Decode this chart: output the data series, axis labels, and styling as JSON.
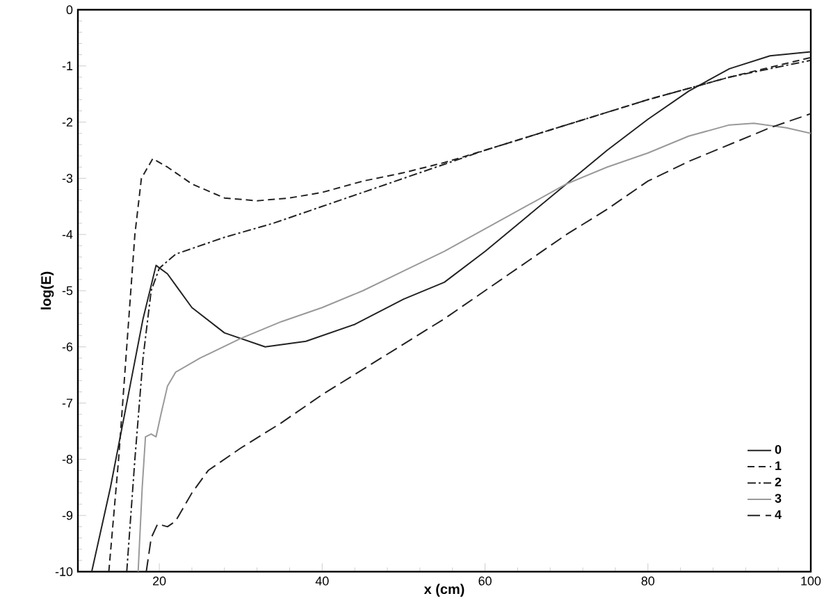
{
  "chart_data": {
    "type": "line",
    "xlabel": "x (cm)",
    "ylabel": "log(E)",
    "xlim": [
      10,
      100
    ],
    "ylim": [
      -10,
      0
    ],
    "xticks": [
      20,
      40,
      60,
      80,
      100
    ],
    "yticks": [
      -10,
      -9,
      -8,
      -7,
      -6,
      -5,
      -4,
      -3,
      -2,
      -1,
      0
    ],
    "grid": false,
    "legend": "bottom right",
    "marker": "none",
    "series": [
      {
        "name": "0",
        "color": "#222222",
        "line_style": "solid",
        "x": [
          11.7,
          14,
          16,
          18,
          19.6,
          21,
          24,
          28,
          33,
          38,
          44,
          50,
          55,
          60,
          65,
          70,
          75,
          80,
          85,
          90,
          95,
          100
        ],
        "values": [
          -10,
          -8.5,
          -7,
          -5.5,
          -4.55,
          -4.7,
          -5.3,
          -5.75,
          -6.0,
          -5.9,
          -5.6,
          -5.15,
          -4.85,
          -4.3,
          -3.7,
          -3.1,
          -2.5,
          -1.95,
          -1.45,
          -1.05,
          -0.82,
          -0.75
        ]
      },
      {
        "name": "1",
        "color": "#222222",
        "line_style": "dashed",
        "x": [
          13.8,
          15,
          16,
          17,
          17.8,
          19.2,
          21,
          24,
          28,
          32,
          36,
          40,
          45,
          50,
          55,
          60,
          70,
          80,
          90,
          100
        ],
        "values": [
          -10,
          -8,
          -6,
          -4,
          -3,
          -2.65,
          -2.8,
          -3.1,
          -3.35,
          -3.4,
          -3.35,
          -3.25,
          -3.05,
          -2.9,
          -2.72,
          -2.5,
          -2.05,
          -1.6,
          -1.2,
          -0.85
        ]
      },
      {
        "name": "2",
        "color": "#222222",
        "line_style": "dashdot",
        "x": [
          16,
          17,
          18,
          19,
          20,
          22,
          28,
          34,
          40,
          45,
          50,
          55,
          60,
          70,
          80,
          90,
          100
        ],
        "values": [
          -10,
          -8,
          -6.2,
          -5,
          -4.6,
          -4.35,
          -4.05,
          -3.8,
          -3.5,
          -3.25,
          -3.0,
          -2.75,
          -2.5,
          -2.05,
          -1.6,
          -1.2,
          -0.9
        ]
      },
      {
        "name": "3",
        "color": "#999999",
        "line_style": "solid",
        "x": [
          17.4,
          17.9,
          18.3,
          19,
          19.6,
          20.2,
          21,
          22,
          25,
          30,
          35,
          40,
          45,
          50,
          55,
          60,
          65,
          70,
          75,
          80,
          85,
          90,
          93,
          97,
          100
        ],
        "values": [
          -10,
          -8.5,
          -7.6,
          -7.55,
          -7.6,
          -7.2,
          -6.7,
          -6.45,
          -6.2,
          -5.85,
          -5.55,
          -5.3,
          -5.0,
          -4.65,
          -4.3,
          -3.9,
          -3.5,
          -3.1,
          -2.8,
          -2.55,
          -2.25,
          -2.05,
          -2.02,
          -2.1,
          -2.2
        ]
      },
      {
        "name": "4",
        "color": "#222222",
        "line_style": "longdashed",
        "x": [
          18.4,
          19,
          19.8,
          21,
          22,
          24,
          26,
          30,
          35,
          40,
          45,
          50,
          55,
          60,
          65,
          70,
          75,
          80,
          85,
          90,
          95,
          100
        ],
        "values": [
          -10,
          -9.4,
          -9.15,
          -9.2,
          -9.1,
          -8.6,
          -8.2,
          -7.8,
          -7.35,
          -6.85,
          -6.4,
          -5.95,
          -5.5,
          -5.0,
          -4.5,
          -4.0,
          -3.55,
          -3.05,
          -2.7,
          -2.4,
          -2.1,
          -1.85
        ]
      }
    ]
  }
}
